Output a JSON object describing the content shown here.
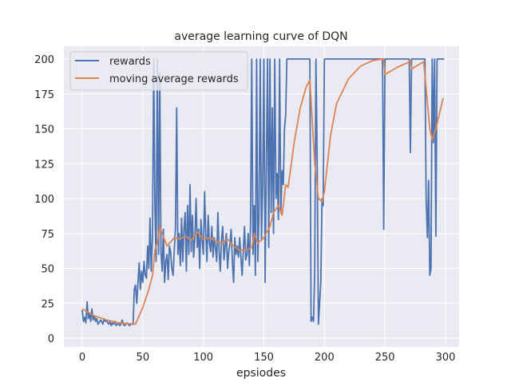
{
  "chart_data": {
    "type": "line",
    "title": "average learning curve of DQN",
    "xlabel": "epsiodes",
    "ylabel": "",
    "xlim": [
      -15,
      315
    ],
    "ylim": [
      -7,
      214
    ],
    "xticks": [
      0,
      50,
      100,
      150,
      200,
      250,
      300
    ],
    "yticks": [
      0,
      25,
      50,
      75,
      100,
      125,
      150,
      175,
      200
    ],
    "grid": true,
    "legend_position": "top-left",
    "series": [
      {
        "name": "rewards",
        "color": "#4c72b0",
        "values": [
          20,
          12,
          15,
          11,
          26,
          14,
          18,
          12,
          21,
          13,
          16,
          12,
          14,
          10,
          11,
          13,
          12,
          10,
          14,
          12,
          13,
          11,
          10,
          12,
          9,
          11,
          10,
          12,
          9,
          10,
          11,
          9,
          10,
          13,
          10,
          9,
          10,
          11,
          10,
          9,
          10,
          10,
          10,
          35,
          38,
          25,
          40,
          54,
          35,
          48,
          40,
          55,
          45,
          43,
          66,
          50,
          86,
          48,
          73,
          200,
          95,
          55,
          200,
          60,
          190,
          62,
          48,
          78,
          40,
          55,
          60,
          42,
          66,
          62,
          50,
          45,
          63,
          80,
          165,
          60,
          75,
          52,
          86,
          55,
          78,
          90,
          48,
          95,
          60,
          110,
          62,
          88,
          58,
          72,
          100,
          65,
          78,
          50,
          85,
          70,
          60,
          105,
          75,
          55,
          88,
          68,
          62,
          80,
          58,
          72,
          65,
          55,
          90,
          62,
          48,
          70,
          80,
          56,
          66,
          75,
          50,
          62,
          68,
          78,
          54,
          40,
          72,
          60,
          66,
          58,
          72,
          58,
          45,
          62,
          80,
          56,
          60,
          75,
          52,
          82,
          200,
          60,
          95,
          45,
          200,
          55,
          90,
          200,
          70,
          110,
          200,
          40,
          120,
          200,
          65,
          200,
          90,
          165,
          75,
          200,
          100,
          118,
          85,
          200,
          90,
          120,
          110,
          150,
          160,
          200,
          200,
          200,
          200,
          200,
          200,
          200,
          200,
          200,
          200,
          200,
          200,
          200,
          200,
          200,
          200,
          200,
          200,
          200,
          200,
          12,
          15,
          12,
          50,
          200,
          130,
          10,
          25,
          40,
          100,
          95,
          200,
          200,
          200,
          200,
          200,
          200,
          200,
          200,
          200,
          200,
          200,
          200,
          200,
          200,
          200,
          200,
          200,
          200,
          200,
          200,
          200,
          200,
          200,
          200,
          200,
          200,
          200,
          200,
          200,
          200,
          200,
          200,
          200,
          200,
          200,
          200,
          200,
          200,
          200,
          200,
          200,
          200,
          200,
          200,
          200,
          200,
          200,
          200,
          200,
          78,
          200,
          200,
          200,
          200,
          200,
          200,
          200,
          200,
          200,
          200,
          200,
          200,
          200,
          200,
          200,
          200,
          200,
          200,
          200,
          200,
          200,
          133,
          200,
          200,
          200,
          200,
          200,
          200,
          200,
          200,
          200,
          200,
          200,
          200,
          100,
          72,
          113,
          45,
          50,
          200,
          140,
          200,
          73,
          200,
          200,
          200,
          200,
          200,
          200,
          200
        ]
      },
      {
        "name": "moving average rewards",
        "color": "#dd8452",
        "x": [
          0,
          10,
          20,
          30,
          44,
          50,
          55,
          58,
          60,
          62,
          64,
          66,
          70,
          76,
          80,
          86,
          90,
          95,
          100,
          105,
          110,
          115,
          120,
          125,
          130,
          135,
          140,
          142,
          145,
          150,
          155,
          158,
          162,
          165,
          168,
          170,
          175,
          180,
          185,
          188,
          192,
          195,
          198,
          200,
          205,
          210,
          220,
          230,
          240,
          249,
          250,
          260,
          270,
          271,
          272,
          282,
          287,
          289,
          292,
          298
        ],
        "values": [
          21,
          16,
          13,
          11,
          10,
          22,
          35,
          45,
          63,
          68,
          80,
          75,
          66,
          72,
          71,
          73,
          70,
          76,
          71,
          72,
          70,
          68,
          71,
          66,
          63,
          63,
          65,
          75,
          68,
          72,
          80,
          90,
          95,
          88,
          110,
          108,
          140,
          165,
          180,
          185,
          125,
          100,
          98,
          105,
          145,
          168,
          186,
          195,
          199,
          200,
          189,
          194,
          198,
          199,
          193,
          198,
          150,
          142,
          150,
          172
        ]
      }
    ]
  }
}
